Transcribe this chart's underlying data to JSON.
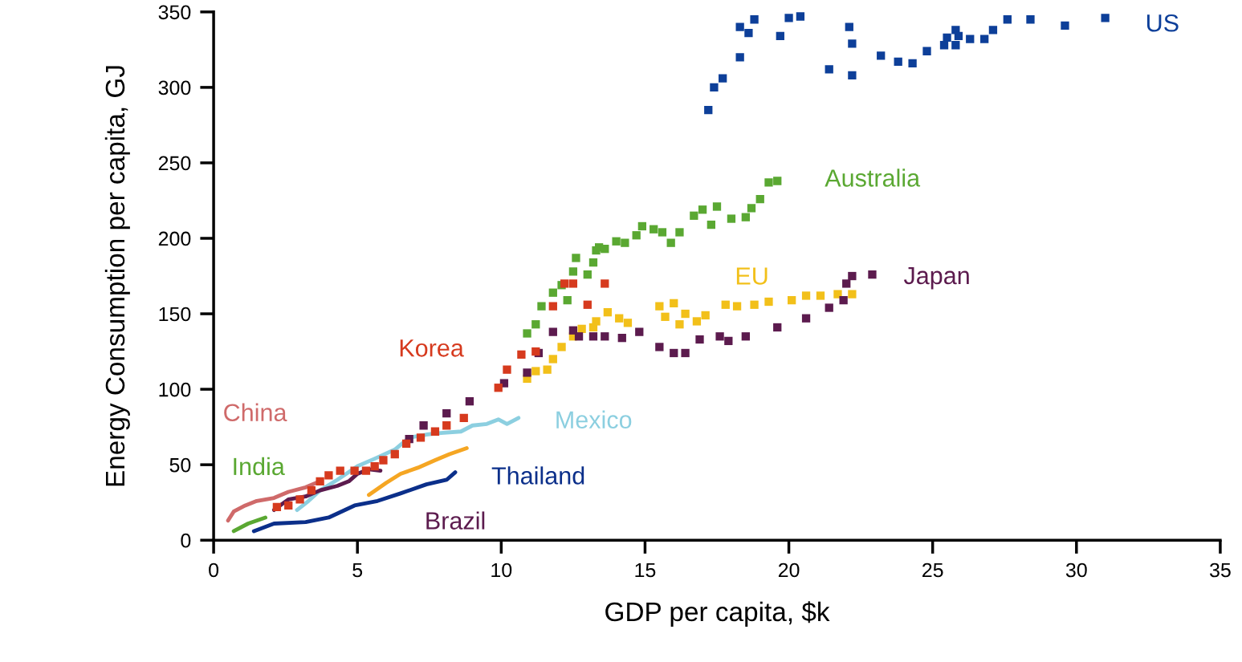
{
  "chart_data": {
    "type": "scatter",
    "xlabel": "GDP per capita, $k",
    "ylabel": "Energy Consumption per capita, GJ",
    "xlim": [
      0,
      35
    ],
    "ylim": [
      0,
      350
    ],
    "xticks": [
      0,
      5,
      10,
      15,
      20,
      25,
      30,
      35
    ],
    "yticks": [
      0,
      50,
      100,
      150,
      200,
      250,
      300,
      350
    ],
    "grid": false,
    "legend": false,
    "series": [
      {
        "name": "US",
        "color": "#0d3f99",
        "marker": "square",
        "x": [
          17.2,
          17.4,
          17.7,
          18.3,
          18.3,
          18.6,
          18.8,
          19.7,
          20.0,
          20.4,
          21.4,
          22.1,
          22.2,
          22.2,
          23.2,
          23.8,
          24.3,
          24.8,
          25.4,
          25.5,
          25.8,
          25.8,
          25.9,
          26.3,
          26.8,
          27.1,
          27.6,
          28.4,
          29.6,
          31.0
        ],
        "values": [
          285,
          300,
          306,
          320,
          340,
          336,
          345,
          334,
          346,
          347,
          312,
          340,
          308,
          329,
          321,
          317,
          316,
          324,
          328,
          333,
          328,
          338,
          334,
          332,
          332,
          338,
          345,
          345,
          341,
          346
        ]
      },
      {
        "name": "Australia",
        "color": "#5aa832",
        "marker": "square",
        "x": [
          10.9,
          11.2,
          11.4,
          11.8,
          12.1,
          12.3,
          12.5,
          12.6,
          13.0,
          13.2,
          13.3,
          13.4,
          13.6,
          14.0,
          14.3,
          14.7,
          14.9,
          15.3,
          15.6,
          15.9,
          16.2,
          16.7,
          17.0,
          17.3,
          17.5,
          18.0,
          18.5,
          18.7,
          19.0,
          19.3,
          19.6
        ],
        "values": [
          137,
          143,
          155,
          164,
          169,
          159,
          178,
          187,
          176,
          184,
          192,
          194,
          193,
          198,
          197,
          202,
          208,
          206,
          204,
          197,
          204,
          215,
          219,
          209,
          221,
          213,
          214,
          220,
          226,
          237,
          238
        ]
      },
      {
        "name": "EU",
        "color": "#f2c01a",
        "marker": "square",
        "x": [
          10.9,
          11.2,
          11.6,
          11.8,
          12.1,
          12.5,
          12.8,
          13.2,
          13.3,
          13.7,
          14.1,
          14.4,
          15.5,
          15.7,
          16.0,
          16.2,
          16.4,
          16.8,
          17.1,
          17.8,
          18.2,
          18.8,
          19.3,
          20.1,
          20.6,
          21.1,
          21.7,
          22.2
        ],
        "values": [
          107,
          112,
          113,
          120,
          128,
          135,
          140,
          141,
          145,
          151,
          147,
          144,
          155,
          148,
          157,
          143,
          150,
          145,
          149,
          156,
          155,
          156,
          158,
          159,
          162,
          162,
          163,
          163
        ]
      },
      {
        "name": "Japan",
        "color": "#5c1b4e",
        "marker": "square",
        "x": [
          6.8,
          7.3,
          8.1,
          8.9,
          10.1,
          10.9,
          11.3,
          11.8,
          12.5,
          12.7,
          13.2,
          13.6,
          14.2,
          14.8,
          15.5,
          16.0,
          16.4,
          16.9,
          17.6,
          17.9,
          18.5,
          19.6,
          20.6,
          21.4,
          21.9,
          22.0,
          22.2,
          22.9
        ],
        "values": [
          67,
          76,
          84,
          92,
          104,
          111,
          124,
          138,
          139,
          135,
          135,
          135,
          134,
          138,
          128,
          124,
          124,
          133,
          135,
          132,
          135,
          141,
          147,
          154,
          159,
          170,
          175,
          176
        ]
      },
      {
        "name": "Korea",
        "color": "#d63a1e",
        "marker": "square",
        "x": [
          2.2,
          2.6,
          3.0,
          3.4,
          3.7,
          4.0,
          4.4,
          4.9,
          5.3,
          5.6,
          5.9,
          6.3,
          6.7,
          7.2,
          7.7,
          8.1,
          8.7,
          9.9,
          10.2,
          10.7,
          11.2,
          11.8,
          12.2,
          12.5,
          13.0,
          13.6
        ],
        "values": [
          22,
          23,
          27,
          33,
          39,
          43,
          46,
          46,
          46,
          49,
          53,
          57,
          64,
          68,
          72,
          76,
          81,
          101,
          113,
          123,
          125,
          155,
          170,
          170,
          156,
          170
        ]
      },
      {
        "name": "China",
        "color": "#cf6a6a",
        "type": "line",
        "x": [
          0.5,
          0.7,
          1.1,
          1.5,
          2.1,
          2.6,
          3.2,
          3.7
        ],
        "values": [
          13,
          19,
          23,
          26,
          28,
          32,
          35,
          39
        ]
      },
      {
        "name": "India",
        "color": "#5aa832",
        "type": "line",
        "x": [
          0.7,
          1.2,
          1.8
        ],
        "values": [
          6,
          11,
          15
        ]
      },
      {
        "name": "Mexico",
        "color": "#8ccfe0",
        "type": "line",
        "x": [
          2.9,
          3.3,
          3.7,
          4.3,
          5.0,
          5.6,
          6.3,
          6.8,
          7.4,
          7.9,
          8.6,
          9.0,
          9.5,
          9.9,
          10.2,
          10.6
        ],
        "values": [
          20,
          26,
          33,
          40,
          49,
          54,
          60,
          68,
          70,
          71,
          72,
          76,
          77,
          80,
          77,
          81
        ]
      },
      {
        "name": "Brazil",
        "color": "#5c1b4e",
        "type": "line",
        "x": [
          2.1,
          2.6,
          3.2,
          3.7,
          4.3,
          4.7,
          5.0,
          5.4,
          5.8
        ],
        "values": [
          20,
          27,
          29,
          33,
          36,
          39,
          44,
          47,
          46
        ]
      },
      {
        "color": "#f5a623",
        "type": "line",
        "x": [
          5.4,
          6.0,
          6.5,
          7.1,
          7.7,
          8.2,
          8.8
        ],
        "values": [
          30,
          38,
          44,
          48,
          53,
          57,
          61
        ]
      },
      {
        "name": "Thailand",
        "color": "#0b2f8a",
        "type": "line",
        "x": [
          1.4,
          2.1,
          3.2,
          4.0,
          4.9,
          5.7,
          6.5,
          7.4,
          8.1,
          8.4
        ],
        "values": [
          6,
          11,
          12,
          15,
          23,
          26,
          31,
          37,
          40,
          45
        ]
      }
    ]
  }
}
